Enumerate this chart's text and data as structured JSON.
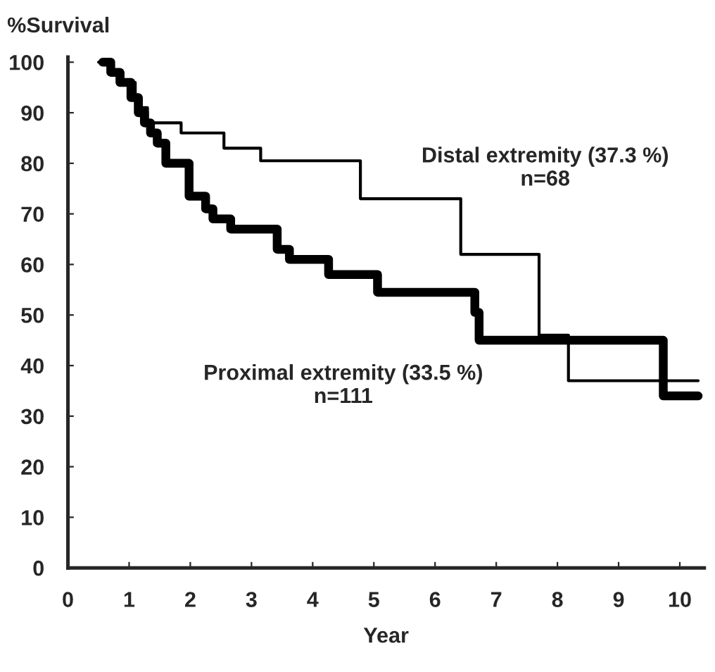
{
  "chart_data": {
    "type": "step",
    "xlabel": "Year",
    "ylabel": "%Survival",
    "xlim": [
      0,
      10.4
    ],
    "ylim": [
      0,
      101
    ],
    "xticks": [
      0,
      1,
      2,
      3,
      4,
      5,
      6,
      7,
      8,
      9,
      10
    ],
    "yticks": [
      0,
      10,
      20,
      30,
      40,
      50,
      60,
      70,
      80,
      90,
      100
    ],
    "grid": false,
    "legend": false,
    "marker": "none",
    "line_style": "solid",
    "series": [
      {
        "name": "Distal extremity (37.3 %)\nn=68",
        "color": "#000000",
        "x": [
          0.5,
          0.7,
          0.9,
          1.1,
          1.2,
          1.3,
          1.85,
          2.55,
          3.15,
          4.78,
          6.42,
          7.7,
          8.18,
          10.3
        ],
        "values": [
          100,
          98,
          96,
          93,
          91,
          88,
          86,
          83,
          80.5,
          73,
          62,
          46,
          37,
          37
        ]
      },
      {
        "name": "Proximal extremity (33.5 %)\nn=111",
        "color": "#000000",
        "x": [
          0.57,
          0.7,
          0.85,
          1.03,
          1.15,
          1.25,
          1.35,
          1.46,
          1.6,
          1.98,
          2.25,
          2.37,
          2.66,
          3.42,
          3.62,
          4.26,
          5.06,
          6.65,
          6.72,
          9.73,
          10.3
        ],
        "values": [
          100,
          98,
          96,
          93,
          90,
          88,
          86,
          84,
          80,
          73.5,
          71,
          69,
          67,
          63,
          61,
          58,
          54.5,
          50.5,
          45,
          34,
          34
        ]
      }
    ]
  }
}
